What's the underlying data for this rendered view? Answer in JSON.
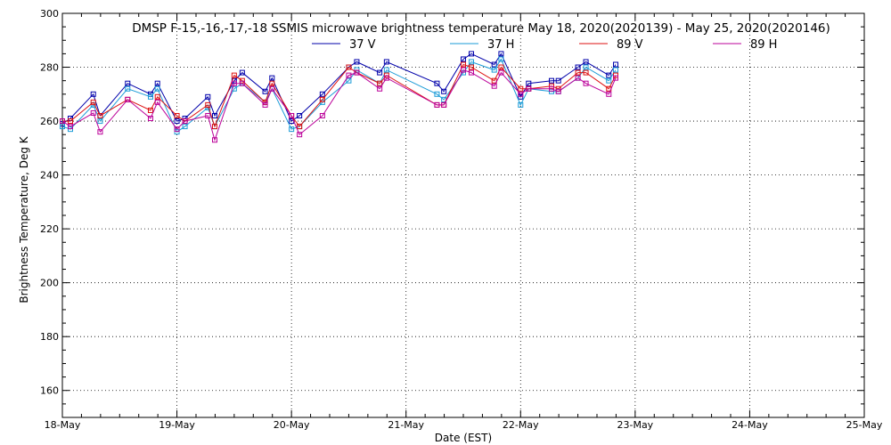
{
  "chart_data": {
    "type": "line",
    "title": "DMSP F-15,-16,-17,-18 SSMIS microwave brightness temperature May 18, 2020(2020139) - May 25, 2020(2020146)",
    "xlabel": "Date (EST)",
    "ylabel": "Brightness Temperature, Deg K",
    "ylim": [
      150,
      300
    ],
    "xlim": [
      18,
      25
    ],
    "y_ticks": [
      160,
      180,
      200,
      220,
      240,
      260,
      280,
      300
    ],
    "x_ticks": [
      18,
      19,
      20,
      21,
      22,
      23,
      24,
      25
    ],
    "x_tick_labels": [
      "18-May",
      "19-May",
      "20-May",
      "21-May",
      "22-May",
      "23-May",
      "24-May",
      "25-May"
    ],
    "grid": true,
    "legend_position": "top",
    "x": [
      18.0,
      18.07,
      18.27,
      18.33,
      18.57,
      18.77,
      18.83,
      19.0,
      19.07,
      19.27,
      19.33,
      19.5,
      19.57,
      19.77,
      19.83,
      20.0,
      20.07,
      20.27,
      20.5,
      20.57,
      20.77,
      20.83,
      21.27,
      21.33,
      21.5,
      21.57,
      21.77,
      21.83,
      22.0,
      22.07,
      22.27,
      22.33,
      22.5,
      22.57,
      22.77,
      22.83
    ],
    "series": [
      {
        "name": "37 V",
        "color": "#0000aa",
        "values": [
          259,
          261,
          270,
          262,
          274,
          270,
          274,
          260,
          261,
          269,
          262,
          275,
          278,
          271,
          276,
          260,
          262,
          270,
          280,
          282,
          278,
          282,
          274,
          271,
          283,
          285,
          281,
          285,
          269,
          274,
          275,
          275,
          280,
          282,
          277,
          281
        ]
      },
      {
        "name": "37 H",
        "color": "#1a9bd7",
        "values": [
          258,
          257,
          266,
          260,
          272,
          269,
          272,
          256,
          258,
          265,
          258,
          272,
          274,
          267,
          272,
          257,
          258,
          267,
          275,
          279,
          274,
          279,
          270,
          268,
          278,
          282,
          279,
          283,
          266,
          272,
          271,
          271,
          276,
          280,
          275,
          279
        ]
      },
      {
        "name": "89 V",
        "color": "#dd1111",
        "values": [
          260,
          260,
          267,
          262,
          268,
          264,
          269,
          262,
          260,
          266,
          258,
          277,
          275,
          267,
          274,
          262,
          258,
          268,
          280,
          278,
          274,
          277,
          266,
          266,
          281,
          280,
          275,
          280,
          272,
          272,
          273,
          272,
          278,
          278,
          272,
          277
        ]
      },
      {
        "name": "89 H",
        "color": "#bb0099",
        "values": [
          260,
          258,
          263,
          256,
          268,
          261,
          267,
          257,
          260,
          262,
          253,
          274,
          274,
          266,
          272,
          262,
          255,
          262,
          277,
          278,
          272,
          276,
          266,
          266,
          279,
          278,
          273,
          278,
          270,
          272,
          272,
          271,
          276,
          274,
          270,
          276
        ]
      }
    ]
  }
}
